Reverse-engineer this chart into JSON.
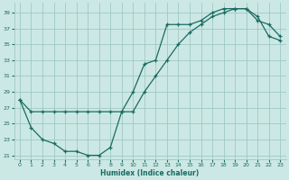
{
  "xlabel": "Humidex (Indice chaleur)",
  "bg_color": "#cce8e4",
  "grid_color": "#9ec8c4",
  "line_color": "#1a6b60",
  "xlim": [
    -0.5,
    23.5
  ],
  "ylim": [
    20.5,
    40.2
  ],
  "xticks": [
    0,
    1,
    2,
    3,
    4,
    5,
    6,
    7,
    8,
    9,
    10,
    11,
    12,
    13,
    14,
    15,
    16,
    17,
    18,
    19,
    20,
    21,
    22,
    23
  ],
  "yticks": [
    21,
    23,
    25,
    27,
    29,
    31,
    33,
    35,
    37,
    39
  ],
  "curve1_x": [
    0,
    1,
    2,
    3,
    4,
    5,
    6,
    7,
    8,
    9,
    10,
    11,
    12,
    13,
    14,
    15,
    16,
    17,
    18,
    19,
    20,
    21,
    22,
    23
  ],
  "curve1_y": [
    28.0,
    26.5,
    26.5,
    26.5,
    26.5,
    26.5,
    26.5,
    26.5,
    26.5,
    26.5,
    26.5,
    29.0,
    31.0,
    33.0,
    35.0,
    36.5,
    37.5,
    38.5,
    39.0,
    39.5,
    39.5,
    38.0,
    37.5,
    36.0
  ],
  "curve2_x": [
    0,
    1,
    2,
    3,
    4,
    5,
    6,
    7,
    8,
    9,
    10,
    11,
    12,
    13,
    14,
    15,
    16,
    17,
    18,
    19,
    20,
    21,
    22,
    23
  ],
  "curve2_y": [
    28.0,
    24.5,
    23.0,
    22.5,
    21.5,
    21.5,
    21.0,
    21.0,
    22.0,
    26.5,
    29.0,
    32.5,
    33.0,
    37.5,
    37.5,
    37.5,
    38.0,
    39.0,
    39.5,
    39.5,
    39.5,
    38.5,
    36.0,
    35.5
  ]
}
